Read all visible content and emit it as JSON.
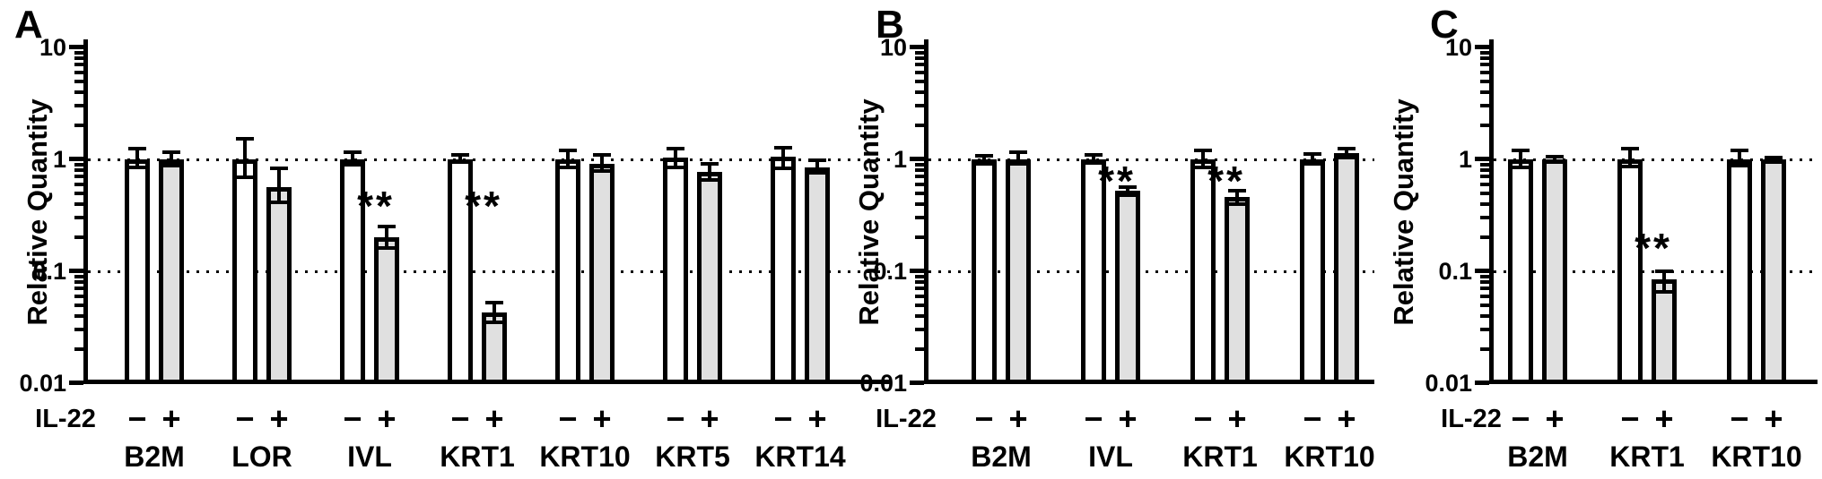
{
  "figure_background": "#ffffff",
  "bar_border_color": "#000000",
  "chart_data": [
    {
      "type": "bar",
      "panel": "A",
      "ylabel": "Relative Quantity",
      "xlabel_row": "IL-22",
      "yscale": "log",
      "ylim": [
        0.01,
        10
      ],
      "ytick_labels": [
        "10",
        "1",
        "0.1",
        "0.01"
      ],
      "gridlines_at": [
        1,
        0.1
      ],
      "grid": "dotted",
      "legend": "none",
      "categories": [
        "B2M",
        "LOR",
        "IVL",
        "KRT1",
        "KRT10",
        "KRT5",
        "KRT14"
      ],
      "sig_y": 0.44,
      "series": [
        {
          "name": "IL-22 minus",
          "treatment": "−",
          "fill": "#ffffff",
          "values": [
            1.0,
            1.0,
            1.0,
            1.0,
            1.0,
            1.03,
            1.05
          ],
          "err_lo": [
            0.85,
            0.69,
            0.9,
            0.95,
            0.85,
            0.85,
            0.83
          ],
          "err_hi": [
            1.25,
            1.53,
            1.15,
            1.1,
            1.2,
            1.25,
            1.27
          ],
          "sig": [
            null,
            null,
            null,
            null,
            null,
            null,
            null
          ]
        },
        {
          "name": "IL-22 plus",
          "treatment": "+",
          "fill": "#e0e0e0",
          "values": [
            1.0,
            0.57,
            0.2,
            0.043,
            0.91,
            0.77,
            0.85
          ],
          "err_lo": [
            0.88,
            0.41,
            0.16,
            0.035,
            0.79,
            0.65,
            0.76
          ],
          "err_hi": [
            1.15,
            0.83,
            0.25,
            0.052,
            1.1,
            0.91,
            0.98
          ],
          "sig": [
            null,
            null,
            "**",
            "**",
            null,
            null,
            null
          ]
        }
      ]
    },
    {
      "type": "bar",
      "panel": "B",
      "ylabel": "Relative Quantity",
      "xlabel_row": "IL-22",
      "yscale": "log",
      "ylim": [
        0.01,
        10
      ],
      "ytick_labels": [
        "10",
        "1",
        "0.1",
        "0.01"
      ],
      "gridlines_at": [
        1,
        0.1
      ],
      "grid": "dotted",
      "legend": "none",
      "categories": [
        "B2M",
        "IVL",
        "KRT1",
        "KRT10"
      ],
      "sig_y": 0.73,
      "series": [
        {
          "name": "IL-22 minus",
          "treatment": "−",
          "fill": "#ffffff",
          "values": [
            1.0,
            1.0,
            1.0,
            1.0
          ],
          "err_lo": [
            0.91,
            0.93,
            0.85,
            0.91
          ],
          "err_hi": [
            1.08,
            1.1,
            1.2,
            1.12
          ],
          "sig": [
            null,
            null,
            null,
            null
          ]
        },
        {
          "name": "IL-22 plus",
          "treatment": "+",
          "fill": "#e0e0e0",
          "values": [
            1.0,
            0.52,
            0.46,
            1.13
          ],
          "err_lo": [
            0.91,
            0.48,
            0.4,
            1.04
          ],
          "err_hi": [
            1.16,
            0.56,
            0.52,
            1.25
          ],
          "sig": [
            null,
            "**",
            "**",
            null
          ]
        }
      ]
    },
    {
      "type": "bar",
      "panel": "C",
      "ylabel": "Relative Quantity",
      "xlabel_row": "IL-22",
      "yscale": "log",
      "ylim": [
        0.01,
        10
      ],
      "ytick_labels": [
        "10",
        "1",
        "0.1",
        "0.01"
      ],
      "gridlines_at": [
        1,
        0.1
      ],
      "grid": "dotted",
      "legend": "none",
      "categories": [
        "B2M",
        "KRT1",
        "KRT10"
      ],
      "sig_y": 0.184,
      "series": [
        {
          "name": "IL-22 minus",
          "treatment": "−",
          "fill": "#ffffff",
          "values": [
            1.0,
            1.0,
            1.0
          ],
          "err_lo": [
            0.85,
            0.86,
            0.88
          ],
          "err_hi": [
            1.2,
            1.25,
            1.2
          ],
          "sig": [
            null,
            null,
            null
          ]
        },
        {
          "name": "IL-22 plus",
          "treatment": "+",
          "fill": "#e0e0e0",
          "values": [
            1.0,
            0.085,
            1.0
          ],
          "err_lo": [
            0.97,
            0.065,
            0.97
          ],
          "err_hi": [
            1.06,
            0.1,
            1.04
          ],
          "sig": [
            null,
            "**",
            null
          ]
        }
      ]
    }
  ]
}
